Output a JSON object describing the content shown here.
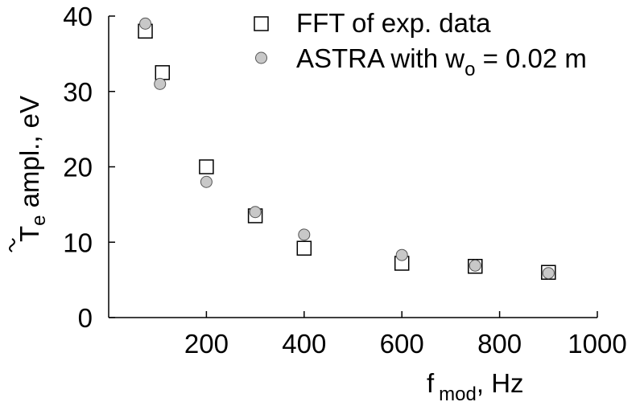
{
  "chart_data": {
    "type": "scatter",
    "xlabel": {
      "main": "f",
      "sub": "mod",
      "suffix": ", Hz"
    },
    "ylabel": {
      "main": "T",
      "sub": "e",
      "suffix": " ampl., eV"
    },
    "xlim": [
      0,
      1000
    ],
    "ylim": [
      0,
      40
    ],
    "x_ticks": [
      200,
      400,
      600,
      800,
      1000
    ],
    "y_ticks": [
      0,
      10,
      20,
      30,
      40
    ],
    "grid": false,
    "legend_position": "top-right",
    "series": [
      {
        "name": "FFT of exp. data",
        "marker": "open-square",
        "color": "#000000",
        "points": [
          {
            "x": 75,
            "y": 38
          },
          {
            "x": 110,
            "y": 32.5
          },
          {
            "x": 200,
            "y": 20
          },
          {
            "x": 300,
            "y": 13.5
          },
          {
            "x": 400,
            "y": 9.2
          },
          {
            "x": 600,
            "y": 7.2
          },
          {
            "x": 750,
            "y": 6.8
          },
          {
            "x": 900,
            "y": 6
          }
        ]
      },
      {
        "name": "ASTRA with w",
        "name_sub": "o",
        "name_suffix": " = 0.02 m",
        "marker": "filled-circle",
        "color": "#c8c8c8",
        "points": [
          {
            "x": 75,
            "y": 39
          },
          {
            "x": 105,
            "y": 31
          },
          {
            "x": 200,
            "y": 18
          },
          {
            "x": 300,
            "y": 14
          },
          {
            "x": 400,
            "y": 11
          },
          {
            "x": 600,
            "y": 8.3
          },
          {
            "x": 750,
            "y": 6.9
          },
          {
            "x": 900,
            "y": 5.9
          }
        ]
      }
    ]
  }
}
